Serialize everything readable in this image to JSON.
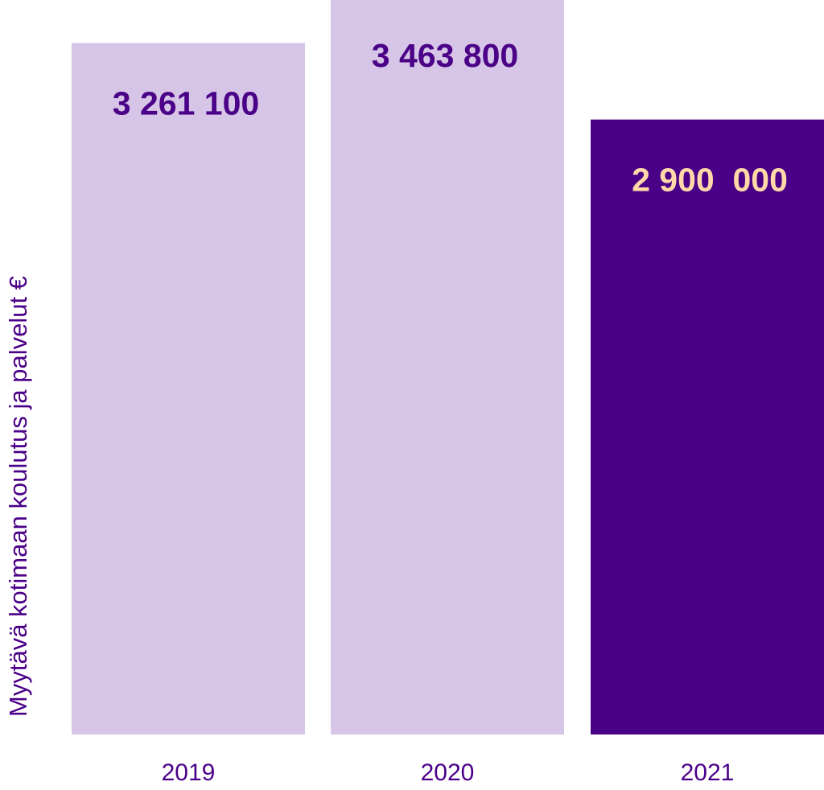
{
  "chart_data": {
    "type": "bar",
    "ylabel": "Myytävä kotimaan koulutus ja palvelut €",
    "categories": [
      "2019",
      "2020",
      "2021"
    ],
    "values": [
      3261100,
      3463800,
      2900000
    ],
    "value_labels": [
      "3 261 100",
      "3 463 800",
      "2 900  000"
    ],
    "ylim": [
      0,
      3463800
    ],
    "grid": false,
    "legend": "none"
  },
  "colors": {
    "bar_light": "#d6c5e6",
    "bar_dark": "#4b0088",
    "label_dark": "#4b0088",
    "label_light": "#ffd9a8",
    "axis_text": "#4b0088"
  }
}
